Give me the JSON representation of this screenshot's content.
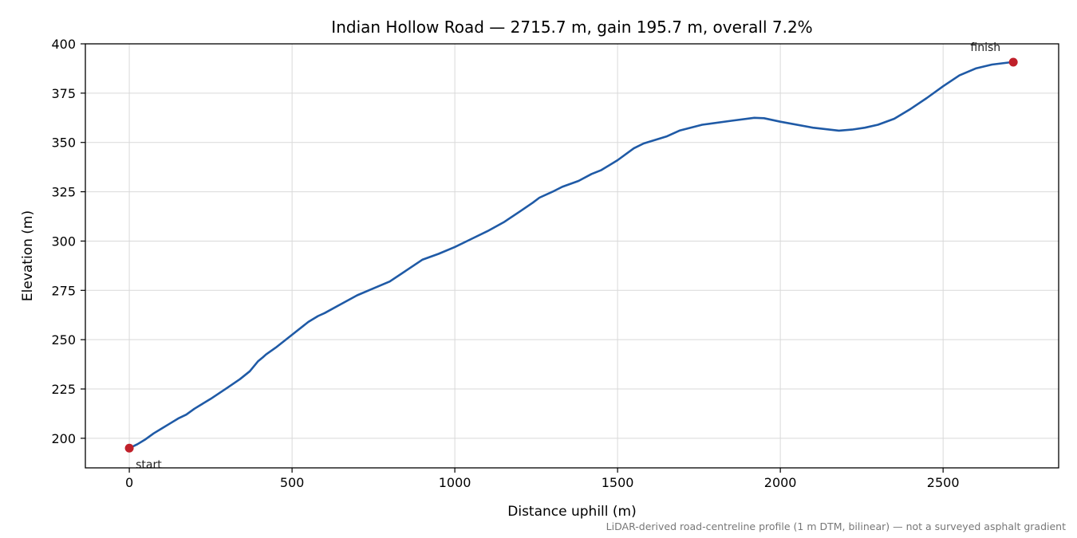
{
  "chart_data": {
    "type": "line",
    "title": "Indian Hollow Road — 2715.7 m, gain 195.7 m, overall 7.2%",
    "xlabel": "Distance uphill (m)",
    "ylabel": "Elevation (m)",
    "xlim": [
      -135,
      2855
    ],
    "ylim": [
      185,
      400
    ],
    "xticks": [
      0,
      500,
      1000,
      1500,
      2000,
      2500
    ],
    "yticks": [
      200,
      225,
      250,
      275,
      300,
      325,
      350,
      375,
      400
    ],
    "grid": true,
    "line_color": "#1f5aa6",
    "marker_color": "#c0202a",
    "series": [
      {
        "x": [
          0,
          25,
          50,
          75,
          100,
          125,
          150,
          175,
          200,
          250,
          300,
          340,
          370,
          395,
          410,
          420,
          450,
          500,
          550,
          580,
          600,
          650,
          700,
          750,
          800,
          850,
          900,
          950,
          1000,
          1050,
          1100,
          1150,
          1200,
          1240,
          1260,
          1300,
          1330,
          1380,
          1420,
          1450,
          1500,
          1550,
          1580,
          1610,
          1650,
          1690,
          1760,
          1850,
          1920,
          1950,
          2000,
          2100,
          2180,
          2220,
          2260,
          2300,
          2350,
          2400,
          2450,
          2500,
          2550,
          2600,
          2650,
          2700,
          2715.7
        ],
        "y": [
          195,
          197,
          199.5,
          202.5,
          205,
          207.5,
          210,
          212,
          215,
          220,
          225.5,
          230,
          234,
          239,
          241,
          242.5,
          246,
          252.5,
          259,
          262,
          263.5,
          268,
          272.5,
          276,
          279.5,
          285,
          290.5,
          293.5,
          297,
          301,
          305,
          309.5,
          315,
          319.5,
          322,
          325,
          327.5,
          330.5,
          334,
          336,
          341,
          347,
          349.5,
          351,
          353,
          356,
          359,
          361,
          362.5,
          362.3,
          360.5,
          357.5,
          356,
          356.5,
          357.5,
          359,
          362,
          367,
          372.5,
          378.5,
          384,
          387.5,
          389.5,
          390.5,
          390.7
        ]
      }
    ],
    "annotations": [
      {
        "text": "start",
        "x": 0,
        "y": 195
      },
      {
        "text": "finish",
        "x": 2715.7,
        "y": 390.7
      }
    ],
    "footnote": "LiDAR-derived road-centreline profile (1 m DTM, bilinear) — not a surveyed asphalt gradient"
  }
}
